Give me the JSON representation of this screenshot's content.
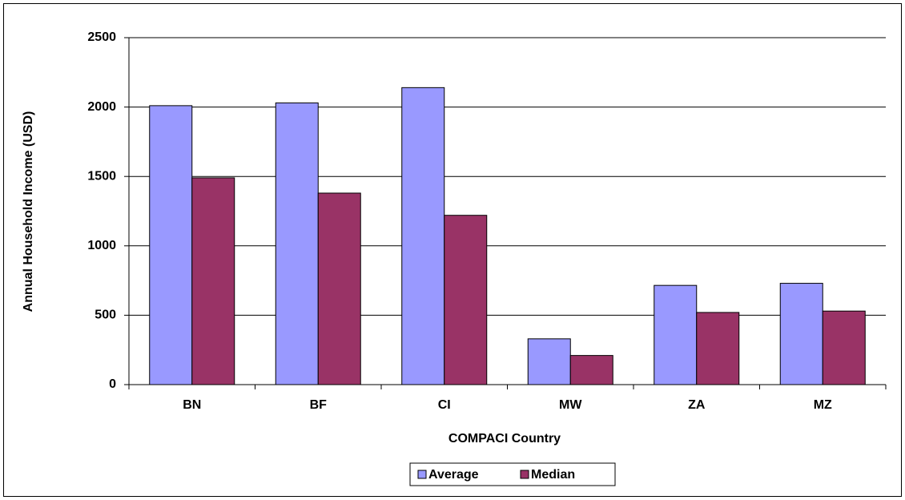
{
  "chart_data": {
    "type": "bar",
    "x_label": "COMPACI Country",
    "y_label": "Annual Household Income (USD)",
    "categories": [
      "BN",
      "BF",
      "CI",
      "MW",
      "ZA",
      "MZ"
    ],
    "series": [
      {
        "name": "Average",
        "color": "#9999ff",
        "values": [
          2010,
          2030,
          2140,
          330,
          715,
          730
        ]
      },
      {
        "name": "Median",
        "color": "#993366",
        "values": [
          1490,
          1380,
          1220,
          210,
          520,
          530
        ]
      }
    ],
    "ylim": [
      0,
      2500
    ],
    "yticks": [
      0,
      500,
      1000,
      1500,
      2000,
      2500
    ],
    "grid": true,
    "legend": "bottom"
  }
}
